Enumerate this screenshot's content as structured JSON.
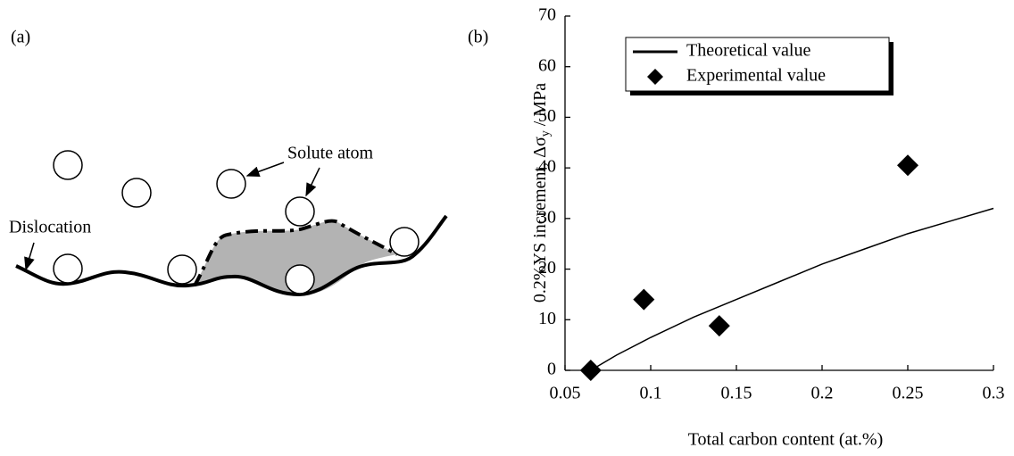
{
  "panel_a": {
    "panel_label": "(a)",
    "solute_label": "Solute atom",
    "dislocation_label": "Dislocation"
  },
  "chart_data": {
    "type": "scatter",
    "panel_label": "(b)",
    "xlabel": "Total carbon content  (at.%)",
    "ylabel": "0.2%YS increment, Δσ",
    "ylabel_sub": "y",
    "ylabel_tail": " / MPa",
    "xlim": [
      0.05,
      0.3
    ],
    "xticks": [
      0.05,
      0.1,
      0.15,
      0.2,
      0.25,
      0.3
    ],
    "ylim": [
      0,
      70
    ],
    "yticks": [
      0,
      10,
      20,
      30,
      40,
      50,
      60,
      70
    ],
    "legend": "upper left",
    "series": [
      {
        "name": "Theoretical value",
        "color": "#000000",
        "kind": "line",
        "x": [
          0.065,
          0.08,
          0.1,
          0.125,
          0.15,
          0.175,
          0.2,
          0.225,
          0.25,
          0.275,
          0.3
        ],
        "values": [
          0,
          3,
          6.5,
          10.5,
          14,
          17.5,
          21,
          24,
          27,
          29.5,
          32
        ]
      },
      {
        "name": "Experimental value",
        "color": "#000000",
        "kind": "marker",
        "x": [
          0.065,
          0.096,
          0.14,
          0.25
        ],
        "values": [
          0,
          14,
          8.8,
          40.5
        ]
      }
    ]
  }
}
